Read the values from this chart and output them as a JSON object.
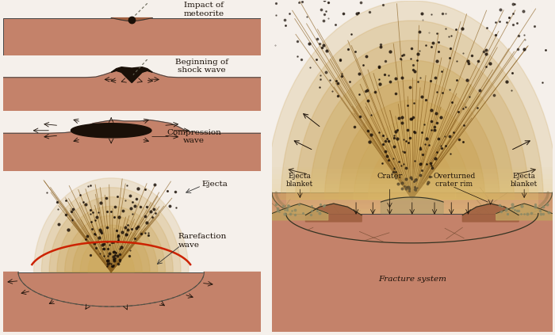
{
  "bg_color": "#f5f0eb",
  "ground_color": "#c4826a",
  "ground_dark": "#a06040",
  "ejecta_color": "#c8a050",
  "ejecta_light": "#e8cc80",
  "black": "#1a1008",
  "red": "#cc2200",
  "line_color": "#555533",
  "labels": {
    "impact": "Impact of\nmeteorite",
    "shock": "Beginning of\nshock wave",
    "compression": "Compression\nwave",
    "ejecta_label": "Ejecta",
    "rarefaction": "Rarefaction\nwave",
    "fracture_top": "Fracture\nsystem",
    "ejecta_blanket_l": "Ejecta\nblanket",
    "crater_label": "Crater",
    "overturned": "Overturned\ncrater rim",
    "ejecta_blanket_r": "Ejecta\nblanket",
    "fracture_bottom": "Fracture system"
  }
}
